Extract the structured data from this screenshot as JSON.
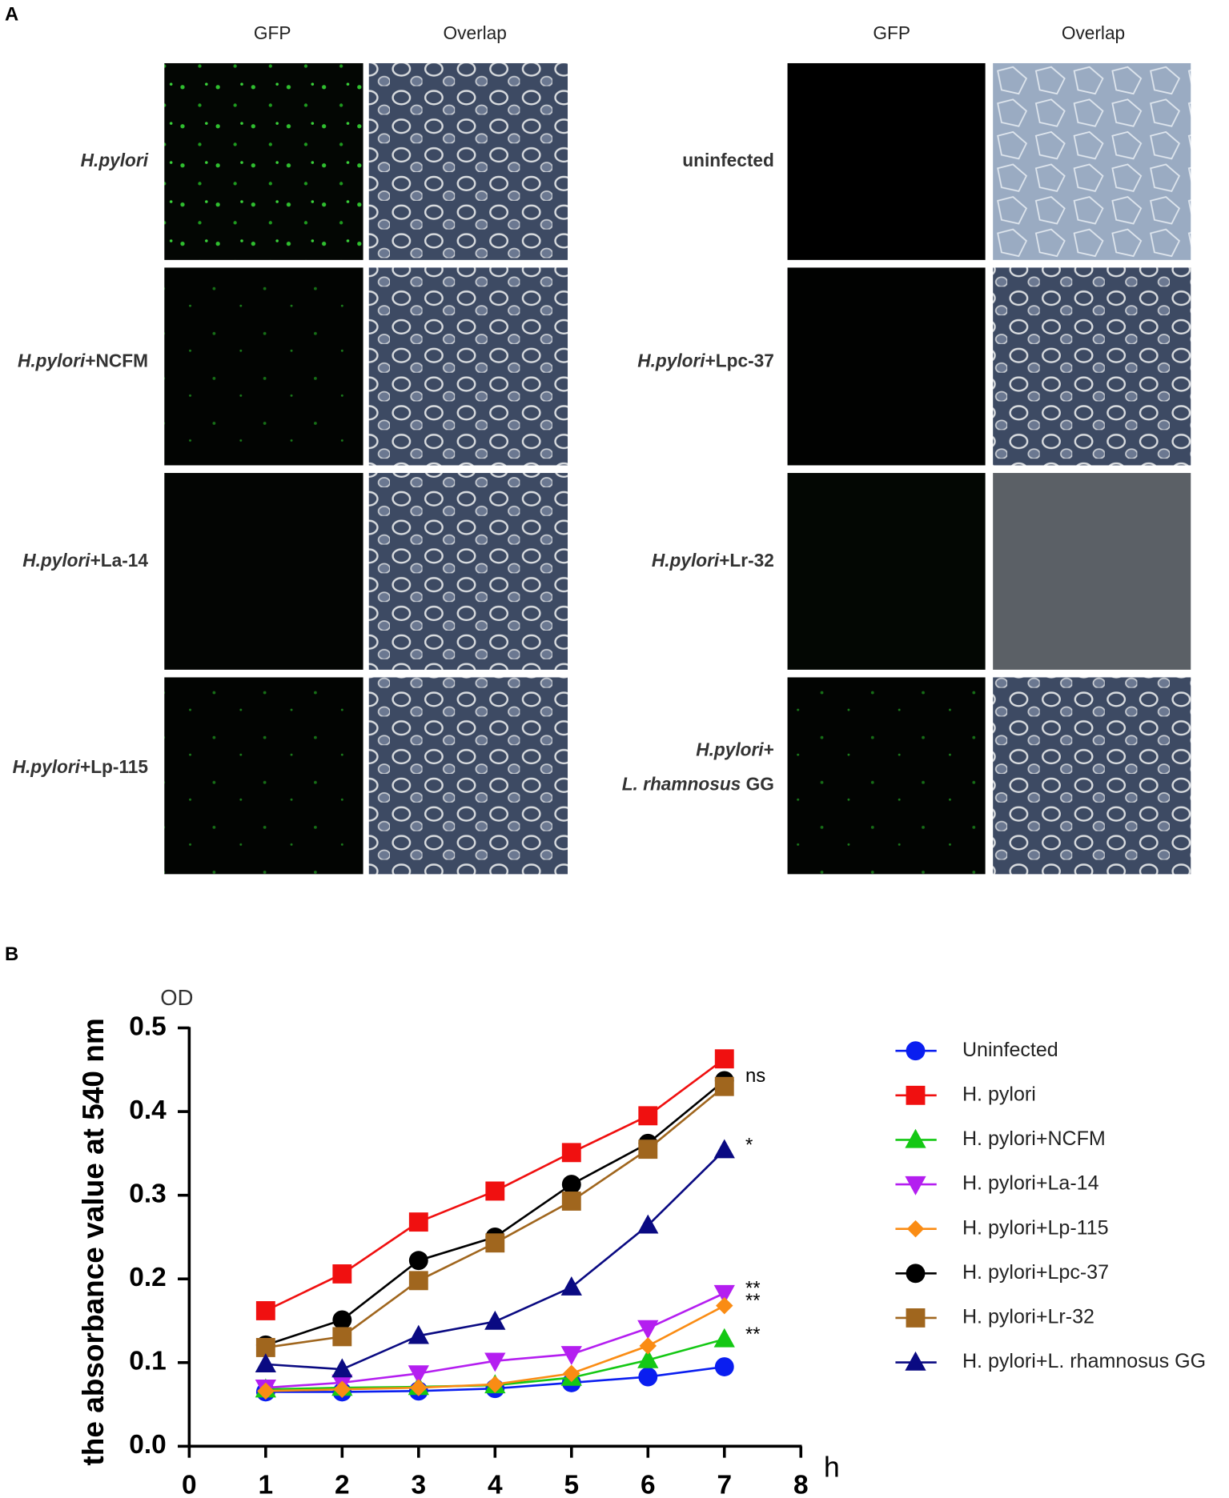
{
  "panel_a": {
    "label": "A",
    "columns": [
      "GFP",
      "Overlap"
    ],
    "left_rows": [
      {
        "label": [
          {
            "italic": "H.pylori"
          }
        ]
      },
      {
        "label": [
          {
            "italic": "H.pylori",
            "text": "+NCFM"
          }
        ]
      },
      {
        "label": [
          {
            "italic": "H.pylori",
            "text": "+La-14"
          }
        ]
      },
      {
        "label": [
          {
            "italic": "H.pylori",
            "text": "+Lp-115"
          }
        ]
      }
    ],
    "right_rows": [
      {
        "label": [
          {
            "text": "uninfected"
          }
        ]
      },
      {
        "label": [
          {
            "italic": "H.pylori",
            "text": "+Lpc-37"
          }
        ]
      },
      {
        "label": [
          {
            "italic": "H.pylori",
            "text": "+Lr-32"
          }
        ]
      },
      {
        "label": [
          {
            "italic": "H.pylori",
            "text": "+"
          },
          {
            "italic": "L. rhamnosus",
            "text": " GG"
          }
        ]
      }
    ]
  },
  "chart_data": {
    "type": "line",
    "panel_label": "B",
    "y_label": "the absorbance value at 540 nm",
    "y_unit": "OD",
    "x_label": "h",
    "x": [
      1,
      2,
      3,
      4,
      5,
      6,
      7
    ],
    "xlim": [
      0,
      8
    ],
    "xticks": [
      0,
      1,
      2,
      3,
      4,
      5,
      6,
      7,
      8
    ],
    "ylim": [
      0,
      0.5
    ],
    "yticks": [
      {
        "value": 0,
        "label": "0.0"
      },
      0.1,
      0.2,
      0.3,
      0.4,
      0.5
    ],
    "series": [
      {
        "name": "Uninfected",
        "color": "#0a1ef0",
        "marker": "circle",
        "values": [
          0.065,
          0.065,
          0.066,
          0.069,
          0.076,
          0.083,
          0.095
        ]
      },
      {
        "name": "H. pylori",
        "color": "#f01010",
        "marker": "square",
        "values": [
          0.162,
          0.206,
          0.268,
          0.305,
          0.351,
          0.395,
          0.463
        ]
      },
      {
        "name": "H. pylori+NCFM",
        "color": "#14c814",
        "marker": "triangle",
        "values": [
          0.068,
          0.07,
          0.071,
          0.073,
          0.082,
          0.103,
          0.128
        ],
        "annotation": "**"
      },
      {
        "name": "H. pylori+La-14",
        "color": "#b41ef0",
        "marker": "down-triangle",
        "values": [
          0.07,
          0.076,
          0.087,
          0.102,
          0.11,
          0.141,
          0.183
        ],
        "annotation": "**"
      },
      {
        "name": "H. pylori+Lp-115",
        "color": "#fa8c14",
        "marker": "diamond",
        "values": [
          0.066,
          0.068,
          0.07,
          0.074,
          0.087,
          0.12,
          0.168
        ],
        "annotation": "**"
      },
      {
        "name": "H. pylori+Lpc-37",
        "color": "#000000",
        "marker": "circle",
        "values": [
          0.121,
          0.151,
          0.222,
          0.25,
          0.313,
          0.362,
          0.437
        ],
        "annotation": "ns"
      },
      {
        "name": "H. pylori+Lr-32",
        "color": "#a0661e",
        "marker": "square",
        "values": [
          0.118,
          0.131,
          0.198,
          0.243,
          0.293,
          0.355,
          0.43
        ]
      },
      {
        "name": "H. pylori+L. rhamnosus GG",
        "color": "#0a0a82",
        "marker": "triangle",
        "values": [
          0.098,
          0.092,
          0.132,
          0.149,
          0.19,
          0.264,
          0.354
        ],
        "annotation": "*"
      }
    ]
  }
}
